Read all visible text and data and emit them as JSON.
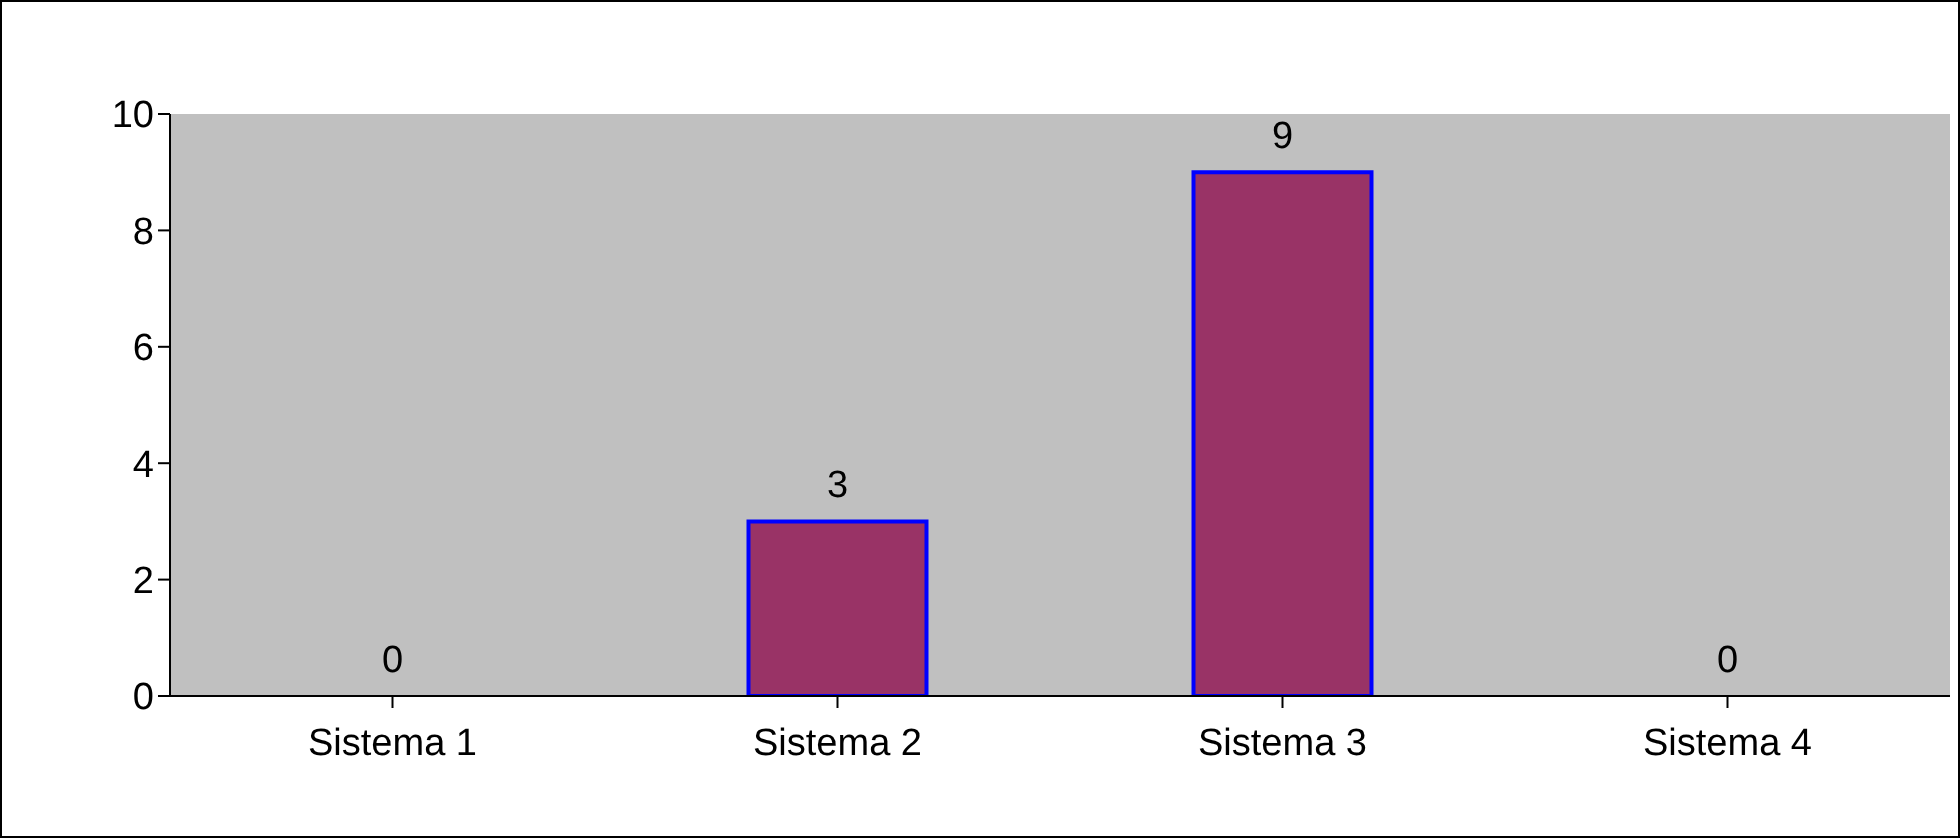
{
  "chart_data": {
    "type": "bar",
    "categories": [
      "Sistema 1",
      "Sistema 2",
      "Sistema 3",
      "Sistema 4"
    ],
    "values": [
      0,
      3,
      9,
      0
    ],
    "color": "#993366",
    "ylim": [
      0,
      10
    ],
    "yticks": [
      0,
      2,
      4,
      6,
      8,
      10
    ],
    "data_labels": true,
    "legend": false
  }
}
